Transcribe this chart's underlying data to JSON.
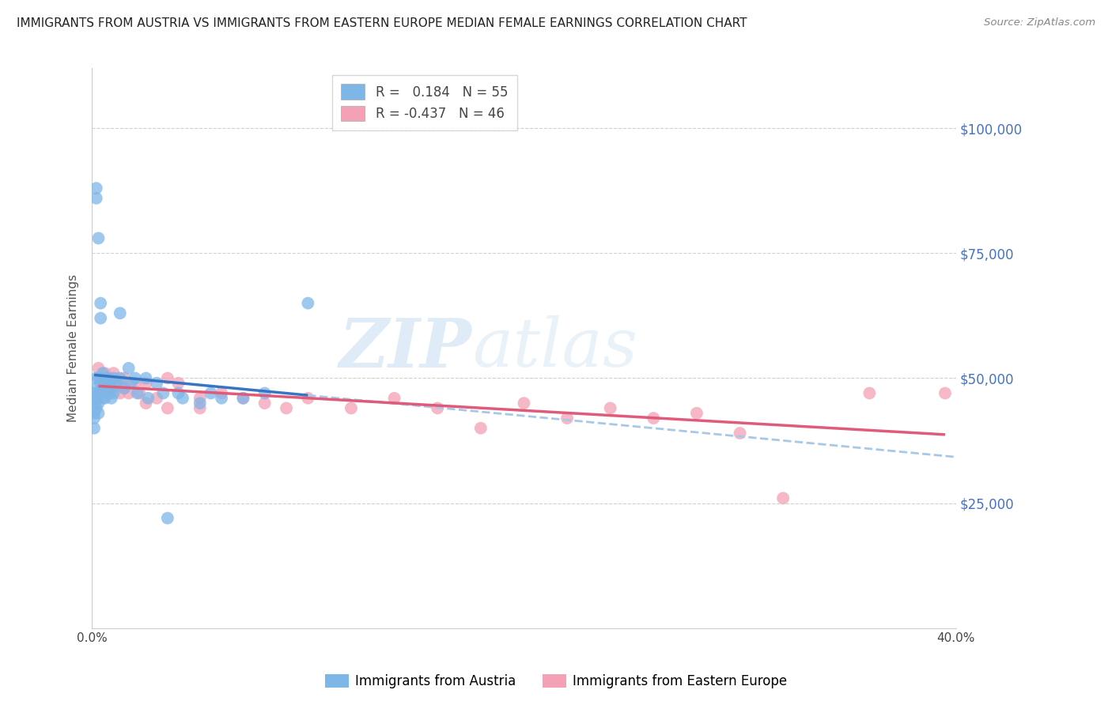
{
  "title": "IMMIGRANTS FROM AUSTRIA VS IMMIGRANTS FROM EASTERN EUROPE MEDIAN FEMALE EARNINGS CORRELATION CHART",
  "source": "Source: ZipAtlas.com",
  "ylabel": "Median Female Earnings",
  "yticks": [
    25000,
    50000,
    75000,
    100000
  ],
  "ytick_labels": [
    "$25,000",
    "$50,000",
    "$75,000",
    "$100,000"
  ],
  "xlim": [
    0.0,
    0.4
  ],
  "ylim": [
    0,
    112000
  ],
  "austria_R": 0.184,
  "austria_N": 55,
  "eastern_europe_R": -0.437,
  "eastern_europe_N": 46,
  "austria_color": "#7EB6E8",
  "eastern_europe_color": "#F4A0B5",
  "austria_line_color": "#3575C3",
  "eastern_europe_line_color": "#E05A7A",
  "dashed_line_color": "#A8C8E8",
  "background_color": "#FFFFFF",
  "watermark_zip": "ZIP",
  "watermark_atlas": "atlas",
  "legend_austria": "Immigrants from Austria",
  "legend_eastern_europe": "Immigrants from Eastern Europe",
  "austria_points_x": [
    0.001,
    0.001,
    0.001,
    0.001,
    0.001,
    0.002,
    0.002,
    0.002,
    0.002,
    0.002,
    0.002,
    0.003,
    0.003,
    0.003,
    0.003,
    0.003,
    0.004,
    0.004,
    0.004,
    0.004,
    0.005,
    0.005,
    0.005,
    0.006,
    0.006,
    0.006,
    0.007,
    0.007,
    0.008,
    0.008,
    0.009,
    0.009,
    0.01,
    0.01,
    0.011,
    0.013,
    0.013,
    0.015,
    0.017,
    0.018,
    0.02,
    0.021,
    0.025,
    0.026,
    0.03,
    0.033,
    0.035,
    0.04,
    0.042,
    0.05,
    0.055,
    0.06,
    0.07,
    0.08,
    0.1
  ],
  "austria_points_y": [
    47000,
    45000,
    43000,
    42000,
    40000,
    86000,
    88000,
    50000,
    48000,
    46000,
    44000,
    78000,
    50000,
    47000,
    45000,
    43000,
    65000,
    62000,
    49000,
    47000,
    51000,
    48000,
    46000,
    50000,
    48000,
    46000,
    50000,
    48000,
    49000,
    47000,
    48000,
    46000,
    50000,
    47000,
    49000,
    63000,
    50000,
    48000,
    52000,
    49000,
    50000,
    47000,
    50000,
    46000,
    49000,
    47000,
    22000,
    47000,
    46000,
    45000,
    47000,
    46000,
    46000,
    47000,
    65000
  ],
  "eastern_europe_points_x": [
    0.003,
    0.004,
    0.005,
    0.005,
    0.006,
    0.006,
    0.007,
    0.007,
    0.008,
    0.008,
    0.009,
    0.01,
    0.01,
    0.012,
    0.013,
    0.015,
    0.015,
    0.017,
    0.02,
    0.022,
    0.025,
    0.025,
    0.03,
    0.035,
    0.035,
    0.04,
    0.05,
    0.05,
    0.06,
    0.07,
    0.08,
    0.09,
    0.1,
    0.12,
    0.14,
    0.16,
    0.18,
    0.2,
    0.22,
    0.24,
    0.26,
    0.28,
    0.3,
    0.32,
    0.36,
    0.395
  ],
  "eastern_europe_points_y": [
    52000,
    50000,
    50000,
    48000,
    51000,
    49000,
    50000,
    48000,
    50000,
    47000,
    49000,
    51000,
    48000,
    49000,
    47000,
    50000,
    48000,
    47000,
    49000,
    47000,
    49000,
    45000,
    46000,
    50000,
    44000,
    49000,
    46000,
    44000,
    47000,
    46000,
    45000,
    44000,
    46000,
    44000,
    46000,
    44000,
    40000,
    45000,
    42000,
    44000,
    42000,
    43000,
    39000,
    26000,
    47000,
    47000
  ]
}
